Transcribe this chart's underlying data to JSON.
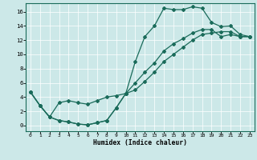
{
  "xlabel": "Humidex (Indice chaleur)",
  "bg_color": "#cce8e8",
  "line_color": "#1a6b5a",
  "xlim": [
    -0.5,
    23.5
  ],
  "ylim": [
    -0.8,
    17.2
  ],
  "xticks": [
    0,
    1,
    2,
    3,
    4,
    5,
    6,
    7,
    8,
    9,
    10,
    11,
    12,
    13,
    14,
    15,
    16,
    17,
    18,
    19,
    20,
    21,
    22,
    23
  ],
  "yticks": [
    0,
    2,
    4,
    6,
    8,
    10,
    12,
    14,
    16
  ],
  "line1_x": [
    0,
    1,
    2,
    3,
    4,
    5,
    6,
    7,
    8,
    9,
    10,
    11,
    12,
    13,
    14,
    15,
    16,
    17,
    18,
    19,
    20,
    21,
    22,
    23
  ],
  "line1_y": [
    4.7,
    2.8,
    1.2,
    0.7,
    0.5,
    0.2,
    0.1,
    0.4,
    0.7,
    2.5,
    4.5,
    9.0,
    12.5,
    14.0,
    16.5,
    16.3,
    16.3,
    16.7,
    16.5,
    14.5,
    13.9,
    14.0,
    12.8,
    12.5
  ],
  "line2_x": [
    0,
    1,
    2,
    3,
    4,
    5,
    6,
    7,
    8,
    9,
    10,
    11,
    12,
    13,
    14,
    15,
    16,
    17,
    18,
    19,
    20,
    21,
    22,
    23
  ],
  "line2_y": [
    4.7,
    2.8,
    1.2,
    3.2,
    3.5,
    3.2,
    3.0,
    3.5,
    4.0,
    4.2,
    4.5,
    6.0,
    7.5,
    8.8,
    10.5,
    11.5,
    12.2,
    13.0,
    13.5,
    13.5,
    12.5,
    12.8,
    12.5,
    12.5
  ],
  "line3_x": [
    0,
    1,
    2,
    3,
    4,
    5,
    6,
    7,
    8,
    9,
    10,
    11,
    12,
    13,
    14,
    15,
    16,
    17,
    18,
    19,
    20,
    21,
    22,
    23
  ],
  "line3_y": [
    4.7,
    2.8,
    1.2,
    0.7,
    0.5,
    0.2,
    0.1,
    0.4,
    0.7,
    2.5,
    4.5,
    5.0,
    6.2,
    7.5,
    9.0,
    10.0,
    11.0,
    12.0,
    12.8,
    13.0,
    13.2,
    13.2,
    12.5,
    12.5
  ]
}
